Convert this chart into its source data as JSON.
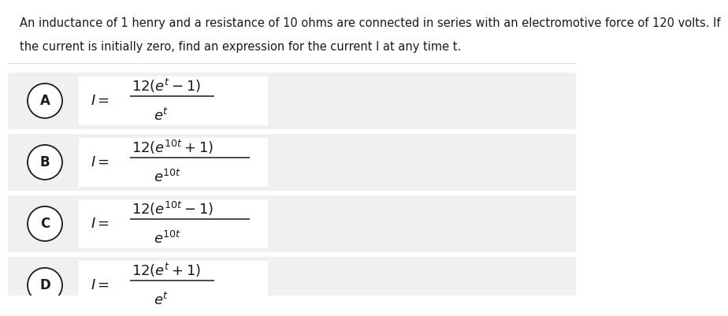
{
  "background_color": "#ffffff",
  "row_bg_color": "#f0f0f0",
  "box_bg_color": "#ffffff",
  "text_color": "#1a1a1a",
  "question_line1": "An inductance of 1 henry and a resistance of 10 ohms are connected in series with an electromotive force of 120 volts. If",
  "question_line2": "the current is initially zero, find an expression for the current I at any time t.",
  "options": [
    "A",
    "B",
    "C",
    "D"
  ],
  "numerators_latex": [
    "$12(e^{t}-1)$",
    "$12(e^{10t}+1)$",
    "$12(e^{10t}-1)$",
    "$12(e^{t}+1)$"
  ],
  "denominators_latex": [
    "$e^{t}$",
    "$e^{10t}$",
    "$e^{10t}$",
    "$e^{t}$"
  ],
  "has_10t": [
    false,
    true,
    true,
    false
  ],
  "font_size_q": 10.5,
  "font_size_label": 12,
  "font_size_math": 13
}
